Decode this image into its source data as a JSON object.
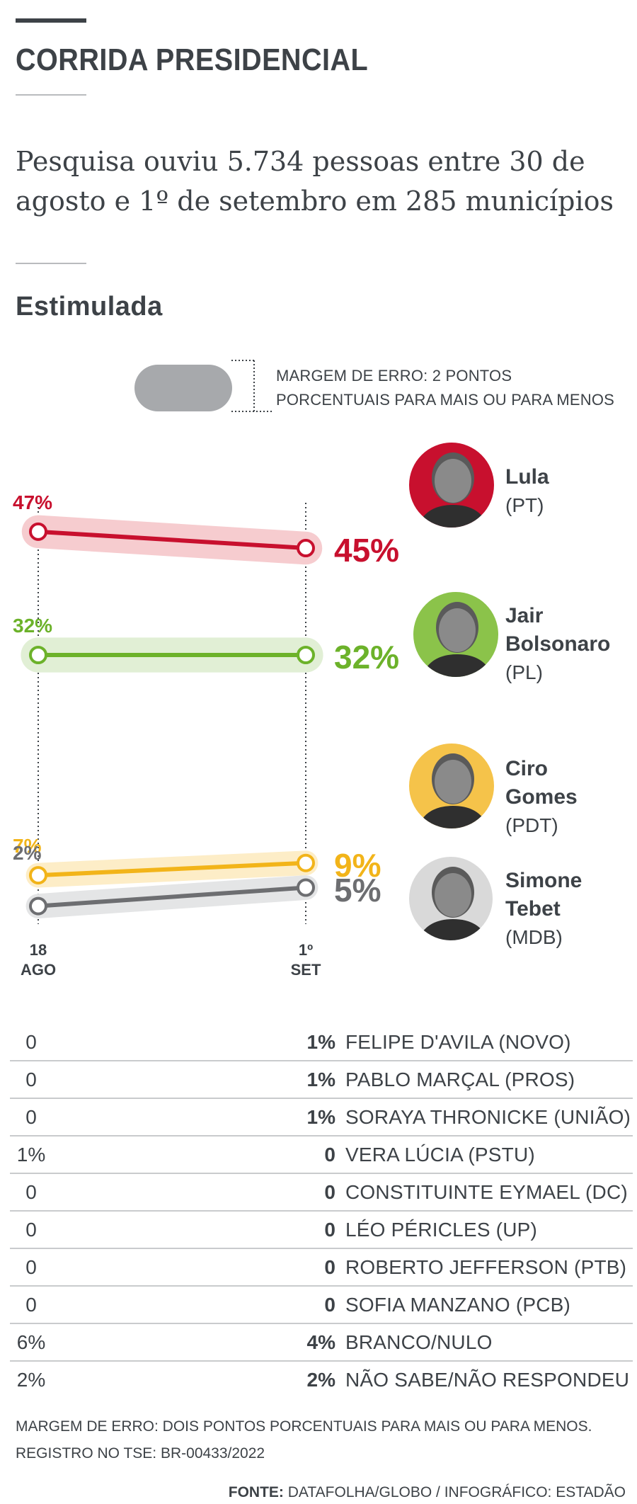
{
  "header": {
    "title": "CORRIDA PRESIDENCIAL",
    "subtitle": "Pesquisa ouviu 5.734 pessoas entre 30 de agosto e 1º de setembro em 285 municípios"
  },
  "section": {
    "heading": "Estimulada"
  },
  "legend": {
    "text": "MARGEM DE ERRO: 2 PONTOS PORCENTUAIS PARA MAIS OU PARA MENOS"
  },
  "chart_data": {
    "type": "line",
    "title": "",
    "x": [
      "18 AGO",
      "1º SET"
    ],
    "x_labels": [
      {
        "top": "18",
        "bottom": "AGO"
      },
      {
        "top": "1º",
        "bottom": "SET"
      }
    ],
    "ylabel": "",
    "ylim": [
      0,
      50
    ],
    "margin_of_error": 2,
    "series": [
      {
        "name": "Lula",
        "party": "(PT)",
        "values": [
          47,
          45
        ],
        "labels": [
          "47%",
          "45%"
        ],
        "color": "#c8102e",
        "band": "#f6cccf"
      },
      {
        "name": "Jair Bolsonaro",
        "party": "(PL)",
        "values": [
          32,
          32
        ],
        "labels": [
          "32%",
          "32%"
        ],
        "color": "#6cb22a",
        "band": "#e1efd5"
      },
      {
        "name": "Ciro Gomes",
        "party": "(PDT)",
        "values": [
          7,
          9
        ],
        "labels": [
          "7%",
          "9%"
        ],
        "color": "#f2b419",
        "band": "#fdedc7"
      },
      {
        "name": "Simone Tebet",
        "party": "(MDB)",
        "values": [
          2,
          5
        ],
        "labels": [
          "2%",
          "5%"
        ],
        "color": "#6d6e71",
        "band": "#e4e5e6"
      }
    ]
  },
  "candidates": [
    {
      "name_lines": [
        "Lula"
      ],
      "party": "(PT)",
      "photo_bg": "#c8102e"
    },
    {
      "name_lines": [
        "Jair",
        "Bolsonaro"
      ],
      "party": "(PL)",
      "photo_bg": "#8bc34a"
    },
    {
      "name_lines": [
        "Ciro",
        "Gomes"
      ],
      "party": "(PDT)",
      "photo_bg": "#f5c34a"
    },
    {
      "name_lines": [
        "Simone",
        "Tebet"
      ],
      "party": "(MDB)",
      "photo_bg": "#d9d9d9"
    }
  ],
  "table": {
    "rows": [
      {
        "ago": "0",
        "set": "1%",
        "name": "FELIPE D'AVILA (NOVO)"
      },
      {
        "ago": "0",
        "set": "1%",
        "name": "PABLO MARÇAL (PROS)"
      },
      {
        "ago": "0",
        "set": "1%",
        "name": "SORAYA THRONICKE (UNIÃO)"
      },
      {
        "ago": "1%",
        "set": "0",
        "name": "VERA LÚCIA (PSTU)"
      },
      {
        "ago": "0",
        "set": "0",
        "name": "CONSTITUINTE EYMAEL (DC)"
      },
      {
        "ago": "0",
        "set": "0",
        "name": "LÉO PÉRICLES (UP)"
      },
      {
        "ago": "0",
        "set": "0",
        "name": "ROBERTO JEFFERSON (PTB)"
      },
      {
        "ago": "0",
        "set": "0",
        "name": "SOFIA MANZANO (PCB)"
      },
      {
        "ago": "6%",
        "set": "4%",
        "name": "BRANCO/NULO"
      },
      {
        "ago": "2%",
        "set": "2%",
        "name": "NÃO SABE/NÃO RESPONDEU"
      }
    ]
  },
  "footer": {
    "note1": "MARGEM DE ERRO: DOIS PONTOS PORCENTUAIS PARA MAIS OU PARA MENOS.",
    "note2": "REGISTRO NO TSE: BR-00433/2022",
    "source_label": "FONTE:",
    "source_text": "DATAFOLHA/GLOBO / INFOGRÁFICO: ESTADÃO"
  }
}
